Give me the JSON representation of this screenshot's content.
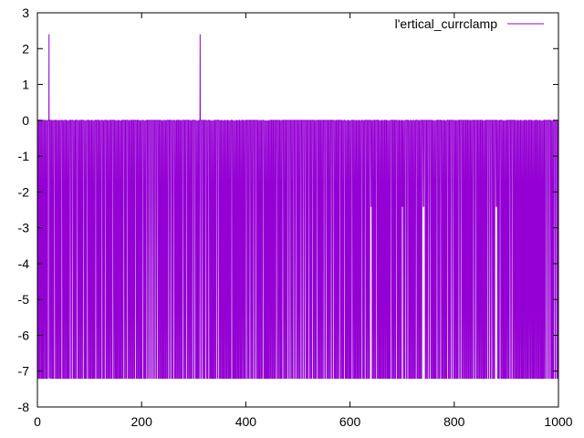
{
  "chart_data": {
    "type": "line",
    "title": "",
    "xlabel": "",
    "ylabel": "",
    "xlim": [
      0,
      1000
    ],
    "ylim": [
      -8,
      3
    ],
    "x_ticks": [
      "0",
      "200",
      "400",
      "600",
      "800",
      "1000"
    ],
    "y_ticks": [
      "3",
      "2",
      "1",
      "0",
      "-1",
      "-2",
      "-3",
      "-4",
      "-5",
      "-6",
      "-7",
      "-8"
    ],
    "x_tick_values": [
      0,
      200,
      400,
      600,
      800,
      1000
    ],
    "y_tick_values": [
      3,
      2,
      1,
      0,
      -1,
      -2,
      -3,
      -4,
      -5,
      -6,
      -7,
      -8
    ],
    "legend_position": "top-right",
    "grid": false,
    "series": [
      {
        "name": "l'ertical_currclamp",
        "color": "#9400d3",
        "baseline": 0,
        "low": -7.2,
        "spikes": [
          {
            "x": 22,
            "y": 2.4
          },
          {
            "x": 312,
            "y": 2.4
          }
        ],
        "shallow_dips": [
          350,
          392,
          452,
          520,
          548,
          585,
          640,
          700,
          740,
          790,
          830,
          880
        ],
        "shallow_level": -2.4,
        "x_range": [
          0,
          1000
        ]
      }
    ]
  }
}
